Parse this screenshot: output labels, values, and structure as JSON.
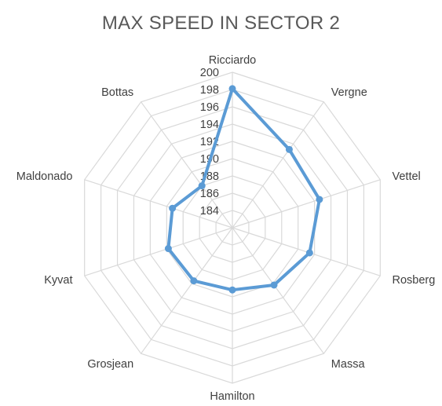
{
  "chart_data": {
    "type": "radar",
    "title": "MAX SPEED IN SECTOR 2",
    "categories": [
      "Ricciardo",
      "Vergne",
      "Vettel",
      "Rosberg",
      "Massa",
      "Hamilton",
      "Grosjean",
      "Kyvat",
      "Maldonado",
      "Bottas"
    ],
    "series": [
      {
        "values": [
          198.1,
          193.2,
          192.6,
          191.4,
          190.2,
          189.2,
          189.6,
          189.8,
          189.3,
          188.0
        ]
      }
    ],
    "r_ticks": [
      184,
      186,
      188,
      190,
      192,
      194,
      196,
      198,
      200
    ],
    "rlim": [
      182,
      200
    ],
    "grid": true,
    "legend": "none",
    "colors": {
      "series": "#5b9bd5",
      "grid": "#d9d9d9",
      "text": "#404040",
      "title": "#595959"
    }
  }
}
